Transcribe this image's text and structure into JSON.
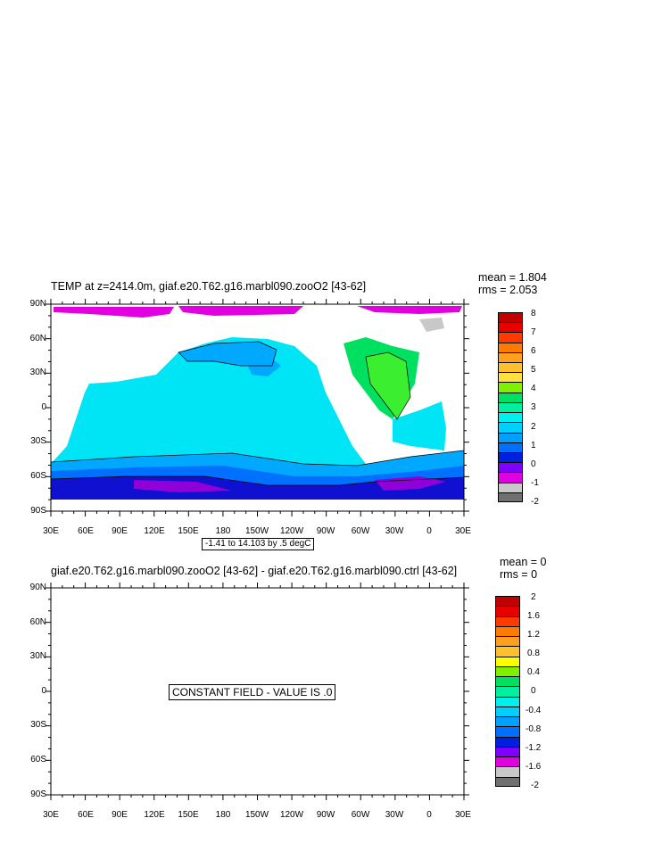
{
  "panel1": {
    "title": "TEMP at z=2414.0m, giaf.e20.T62.g16.marbl090.zooO2 [43-62]",
    "mean_text": "mean = 1.804",
    "rms_text": "rms = 2.053",
    "range_text": "-1.41 to 14.103 by .5 degC",
    "lat_labels": [
      "90N",
      "60N",
      "30N",
      "0",
      "30S",
      "60S",
      "90S"
    ],
    "lon_labels": [
      "30E",
      "60E",
      "90E",
      "120E",
      "150E",
      "180",
      "150W",
      "120W",
      "90W",
      "60W",
      "30W",
      "0",
      "30E"
    ],
    "colorbar": {
      "labels": [
        "8",
        "7",
        "6",
        "5",
        "4",
        "3",
        "2",
        "1",
        "0",
        "-1",
        "-2"
      ],
      "colors": [
        "#c20000",
        "#e80000",
        "#ff3a00",
        "#ff7a00",
        "#ff9f20",
        "#ffc030",
        "#ffe040",
        "#80f000",
        "#00e060",
        "#00f0a0",
        "#00f0f0",
        "#00d0ff",
        "#00a0ff",
        "#0070ff",
        "#0020e0",
        "#8000ff",
        "#e000e0",
        "#c8c8c8",
        "#707070"
      ]
    }
  },
  "panel2": {
    "title": "giaf.e20.T62.g16.marbl090.zooO2 [43-62] - giaf.e20.T62.g16.marbl090.ctrl [43-62]",
    "mean_text": "mean = 0",
    "rms_text": "rms = 0",
    "constant_text": "CONSTANT FIELD - VALUE IS .0",
    "lat_labels": [
      "90N",
      "60N",
      "30N",
      "0",
      "30S",
      "60S",
      "90S"
    ],
    "lon_labels": [
      "30E",
      "60E",
      "90E",
      "120E",
      "150E",
      "180",
      "150W",
      "120W",
      "90W",
      "60W",
      "30W",
      "0",
      "30E"
    ],
    "colorbar": {
      "labels": [
        "2",
        "1.6",
        "1.2",
        "0.8",
        "0.4",
        "0",
        "-0.4",
        "-0.8",
        "-1.2",
        "-1.6",
        "-2"
      ],
      "colors": [
        "#c20000",
        "#e80000",
        "#ff3a00",
        "#ff7a00",
        "#ff9f20",
        "#ffc030",
        "#ffff00",
        "#80f000",
        "#00e060",
        "#00f0a0",
        "#00f0f0",
        "#00d0ff",
        "#00a0ff",
        "#0070ff",
        "#0020e0",
        "#8000ff",
        "#e000e0",
        "#c8c8c8",
        "#707070"
      ]
    }
  }
}
